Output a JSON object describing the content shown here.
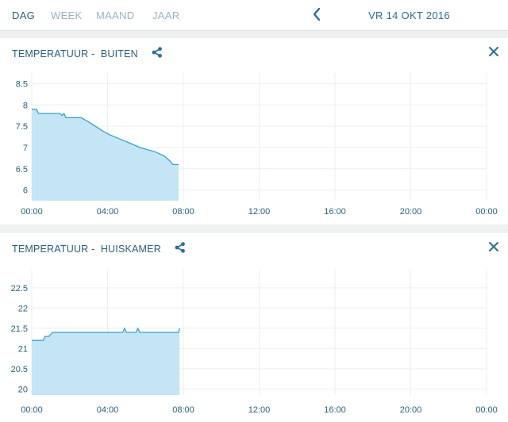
{
  "tabs": [
    {
      "label": "DAG",
      "active": true
    },
    {
      "label": "WEEK",
      "active": false
    },
    {
      "label": "MAAND",
      "active": false
    },
    {
      "label": "JAAR",
      "active": false
    }
  ],
  "nav": {
    "back_icon": "chevron-left-icon",
    "date": "VR 14 OKT 2016"
  },
  "colors": {
    "accent": "#2a6f98",
    "line": "#3aa0cc",
    "fill": "#c3e5f5",
    "inactive_tab": "#9bb3c2"
  },
  "cards": [
    {
      "title_prefix": "TEMPERATUUR - ",
      "title_location": "BUITEN",
      "share_icon": "share-icon",
      "close_icon": "close-icon"
    },
    {
      "title_prefix": "TEMPERATUUR - ",
      "title_location": "HUISKAMER",
      "share_icon": "share-icon",
      "close_icon": "close-icon"
    }
  ],
  "chart_data": [
    {
      "type": "area",
      "title": "",
      "xlabel": "",
      "ylabel": "",
      "x_ticks": [
        "00:00",
        "04:00",
        "08:00",
        "12:00",
        "16:00",
        "20:00",
        "00:00"
      ],
      "xlim_hours": [
        0,
        24
      ],
      "y_ticks": [
        6,
        6.5,
        7,
        7.5,
        8,
        8.5
      ],
      "ylim": [
        5.75,
        8.75
      ],
      "grid": true,
      "series": [
        {
          "x_hours": [
            0,
            0.25,
            0.35,
            1.5,
            1.6,
            1.7,
            1.8,
            2.6,
            3.0,
            3.35,
            3.7,
            4.1,
            4.65,
            5.2,
            5.7,
            6.5,
            7.0,
            7.25,
            7.45,
            7.75
          ],
          "values": [
            7.9,
            7.9,
            7.8,
            7.8,
            7.75,
            7.8,
            7.7,
            7.7,
            7.6,
            7.5,
            7.4,
            7.3,
            7.2,
            7.1,
            7.0,
            6.9,
            6.8,
            6.7,
            6.6,
            6.6
          ]
        }
      ]
    },
    {
      "type": "area",
      "title": "",
      "xlabel": "",
      "ylabel": "",
      "x_ticks": [
        "00:00",
        "04:00",
        "08:00",
        "12:00",
        "16:00",
        "20:00",
        "00:00"
      ],
      "xlim_hours": [
        0,
        24
      ],
      "y_ticks": [
        20,
        20.5,
        21,
        21.5,
        22,
        22.5
      ],
      "ylim": [
        19.85,
        22.95
      ],
      "grid": true,
      "series": [
        {
          "x_hours": [
            0,
            0.6,
            0.7,
            0.9,
            1.1,
            4.8,
            4.9,
            5.0,
            5.5,
            5.6,
            5.7,
            7.75,
            7.8
          ],
          "values": [
            21.2,
            21.2,
            21.3,
            21.3,
            21.4,
            21.4,
            21.5,
            21.4,
            21.4,
            21.5,
            21.4,
            21.4,
            21.5
          ]
        }
      ]
    }
  ]
}
